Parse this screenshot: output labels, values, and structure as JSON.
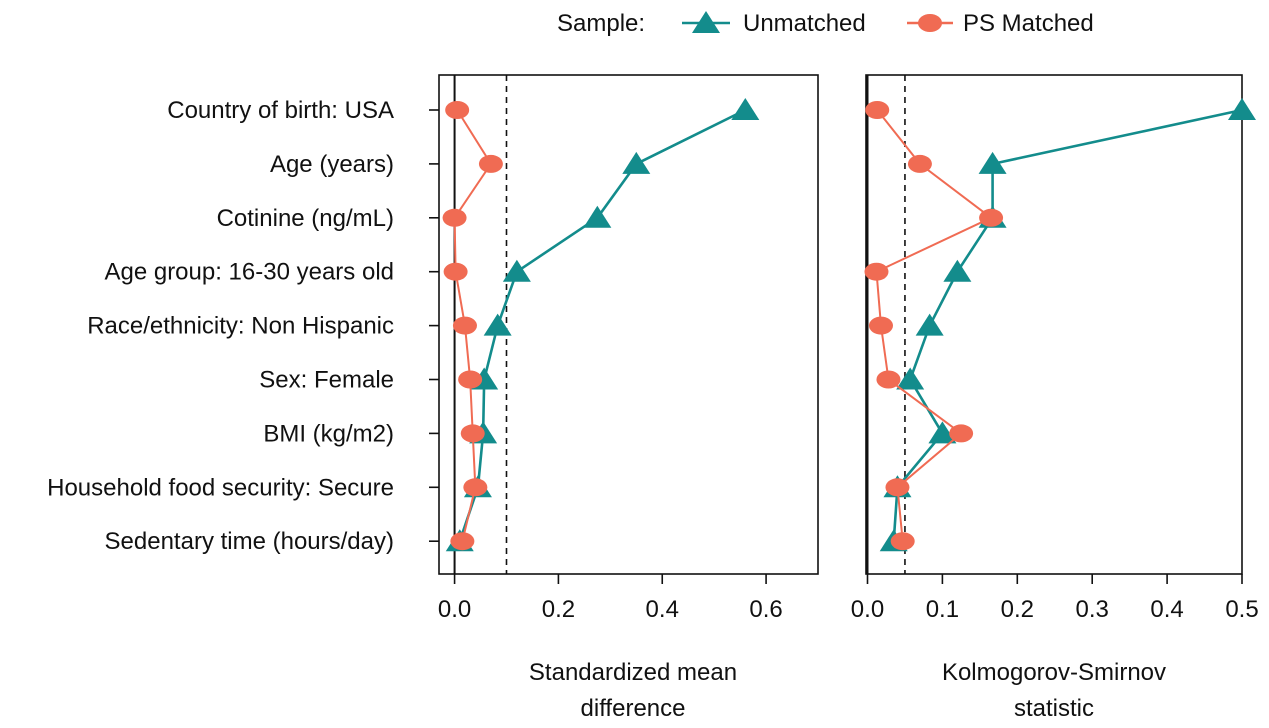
{
  "legend": {
    "title": "Sample:",
    "placement": "top"
  },
  "colors": {
    "unmatched": "#138c8c",
    "matched": "#f06b53"
  },
  "chart_data": [
    {
      "type": "line",
      "title": "",
      "xlabel": "Standardized mean difference",
      "ylabel": "",
      "xlim": [
        -0.03,
        0.7
      ],
      "xticks": [
        "0.0",
        "0.2",
        "0.4",
        "0.6"
      ],
      "xtick_values": [
        0,
        0.2,
        0.4,
        0.6
      ],
      "threshold": 0.1,
      "grid": false,
      "categories": [
        "Country of birth: USA",
        "Age (years)",
        "Cotinine (ng/mL)",
        "Age group: 16-30 years old",
        "Race/ethnicity: Non Hispanic",
        "Sex: Female",
        "BMI (kg/m2)",
        "Household food security: Secure",
        "Sedentary time (hours/day)"
      ],
      "series": [
        {
          "name": "Unmatched",
          "marker": "triangle",
          "values": [
            0.56,
            0.35,
            0.275,
            0.12,
            0.083,
            0.057,
            0.055,
            0.045,
            0.01
          ]
        },
        {
          "name": "PS Matched",
          "marker": "circle",
          "values": [
            0.005,
            0.07,
            0.0,
            0.002,
            0.02,
            0.03,
            0.035,
            0.04,
            0.015
          ]
        }
      ]
    },
    {
      "type": "line",
      "title": "",
      "xlabel": "Kolmogorov-Smirnov statistic",
      "ylabel": "",
      "xlim": [
        -0.002,
        0.5
      ],
      "xticks": [
        "0.0",
        "0.1",
        "0.2",
        "0.3",
        "0.4",
        "0.5"
      ],
      "xtick_values": [
        0,
        0.1,
        0.2,
        0.3,
        0.4,
        0.5
      ],
      "threshold": 0.05,
      "grid": false,
      "categories": [
        "Country of birth: USA",
        "Age (years)",
        "Cotinine (ng/mL)",
        "Age group: 16-30 years old",
        "Race/ethnicity: Non Hispanic",
        "Sex: Female",
        "BMI (kg/m2)",
        "Household food security: Secure",
        "Sedentary time (hours/day)"
      ],
      "series": [
        {
          "name": "Unmatched",
          "marker": "triangle",
          "values": [
            0.5,
            0.167,
            0.167,
            0.12,
            0.083,
            0.057,
            0.1,
            0.04,
            0.035
          ]
        },
        {
          "name": "PS Matched",
          "marker": "circle",
          "values": [
            0.013,
            0.07,
            0.165,
            0.012,
            0.018,
            0.028,
            0.125,
            0.04,
            0.047
          ]
        }
      ]
    }
  ]
}
